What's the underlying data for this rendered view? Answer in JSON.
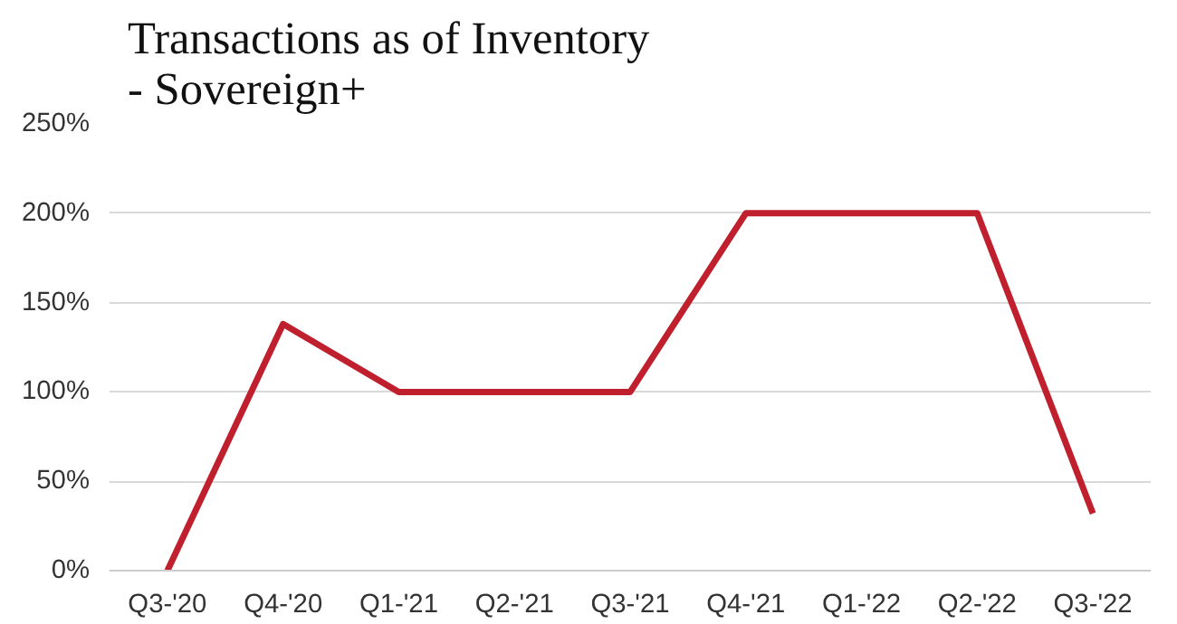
{
  "chart_data": {
    "type": "line",
    "title": "Transactions as of Inventory\n          - Sovereign+",
    "categories": [
      "Q3-'20",
      "Q4-'20",
      "Q1-'21",
      "Q2-'21",
      "Q3-'21",
      "Q4-'21",
      "Q1-'22",
      "Q2-'22",
      "Q3-'22"
    ],
    "series": [
      {
        "color": "#c0202e",
        "values": [
          0,
          138,
          100,
          100,
          100,
          200,
          200,
          200,
          32
        ]
      }
    ],
    "ylim": [
      0,
      250
    ],
    "yticks": [
      {
        "value": 0,
        "label": "0%"
      },
      {
        "value": 50,
        "label": "50%"
      },
      {
        "value": 100,
        "label": "100%"
      },
      {
        "value": 150,
        "label": "150%"
      },
      {
        "value": 200,
        "label": "200%"
      },
      {
        "value": 250,
        "label": "250%"
      }
    ],
    "grid": "y",
    "marker": "none",
    "line_style": "solid"
  }
}
